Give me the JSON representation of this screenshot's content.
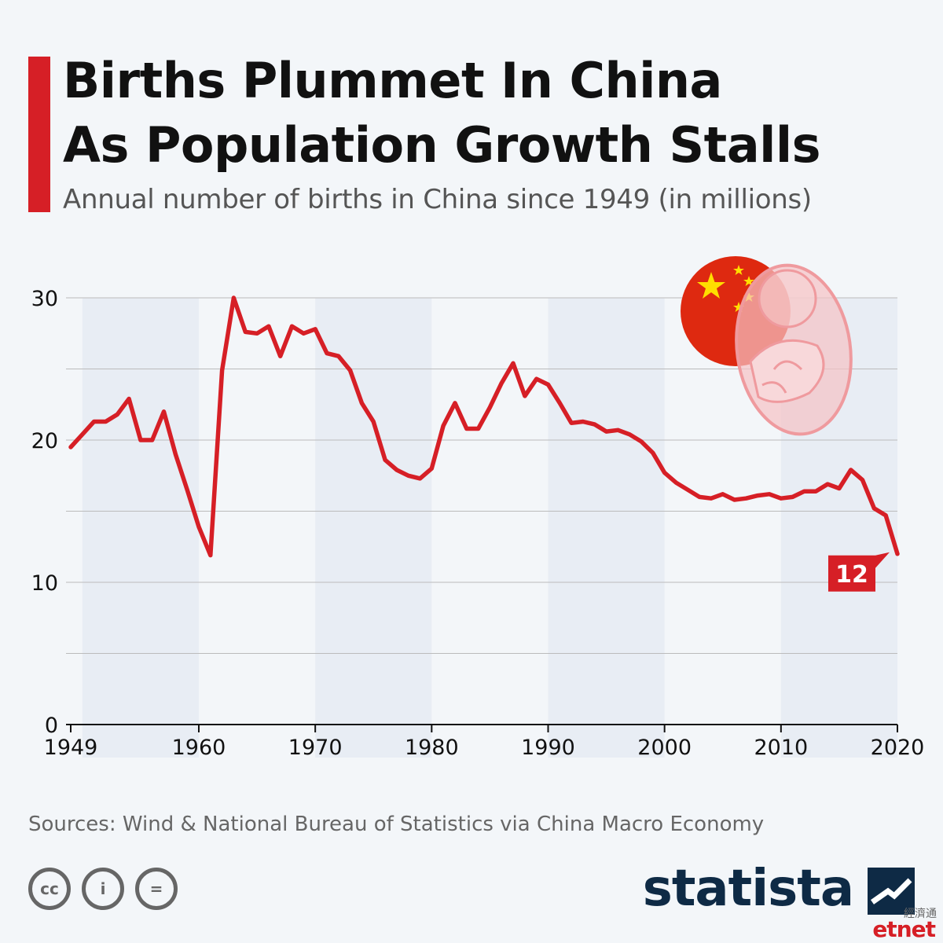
{
  "header": {
    "title_line1": "Births Plummet In China",
    "title_line2": "As Population Growth Stalls",
    "subtitle": "Annual number of births in China since 1949 (in millions)"
  },
  "colors": {
    "accent": "#d61f26",
    "line": "#d61f26",
    "band": "#e8edf4",
    "grid": "#bbbbbb",
    "text": "#111111",
    "brand": "#0e2a45"
  },
  "illustration": {
    "icons": [
      "china-flag-icon",
      "fetus-icon"
    ]
  },
  "chart_data": {
    "type": "line",
    "title": "Births Plummet In China As Population Growth Stalls",
    "subtitle": "Annual number of births in China since 1949 (in millions)",
    "xlabel": "",
    "ylabel": "",
    "xlim": [
      1949,
      2020
    ],
    "ylim": [
      0,
      30
    ],
    "x_ticks": [
      1949,
      1960,
      1970,
      1980,
      1990,
      2000,
      2010,
      2020
    ],
    "y_ticks": [
      0,
      10,
      20,
      30
    ],
    "grid": true,
    "series": [
      {
        "x": [
          1949,
          1950,
          1951,
          1952,
          1953,
          1954,
          1955,
          1956,
          1957,
          1958,
          1959,
          1960,
          1961,
          1962,
          1963,
          1964,
          1965,
          1966,
          1967,
          1968,
          1969,
          1970,
          1971,
          1972,
          1973,
          1974,
          1975,
          1976,
          1977,
          1978,
          1979,
          1980,
          1981,
          1982,
          1983,
          1984,
          1985,
          1986,
          1987,
          1988,
          1989,
          1990,
          1991,
          1992,
          1993,
          1994,
          1995,
          1996,
          1997,
          1998,
          1999,
          2000,
          2001,
          2002,
          2003,
          2004,
          2005,
          2006,
          2007,
          2008,
          2009,
          2010,
          2011,
          2012,
          2013,
          2014,
          2015,
          2016,
          2017,
          2018,
          2019,
          2020
        ],
        "values": [
          19.5,
          20.4,
          21.3,
          21.3,
          21.8,
          22.9,
          20.0,
          20.0,
          22.0,
          19.0,
          16.5,
          13.9,
          11.9,
          24.9,
          30.0,
          27.6,
          27.5,
          28.0,
          25.9,
          28.0,
          27.5,
          27.8,
          26.1,
          25.9,
          24.9,
          22.6,
          21.3,
          18.6,
          17.9,
          17.5,
          17.3,
          18.0,
          21.0,
          22.6,
          20.8,
          20.8,
          22.3,
          24.0,
          25.4,
          23.1,
          24.3,
          23.9,
          22.6,
          21.2,
          21.3,
          21.1,
          20.6,
          20.7,
          20.4,
          19.9,
          19.1,
          17.7,
          17.0,
          16.5,
          16.0,
          15.9,
          16.2,
          15.8,
          15.9,
          16.1,
          16.2,
          15.9,
          16.0,
          16.4,
          16.4,
          16.9,
          16.6,
          17.9,
          17.2,
          15.2,
          14.7,
          12.0
        ],
        "last_label": "12"
      }
    ]
  },
  "footer": {
    "source": "Sources: Wind & National Bureau of Statistics via China Macro Economy",
    "cc_labels": [
      "cc",
      "i",
      "="
    ],
    "brand": "statista",
    "watermark_cn": "經濟通",
    "watermark_en": "etnet"
  }
}
